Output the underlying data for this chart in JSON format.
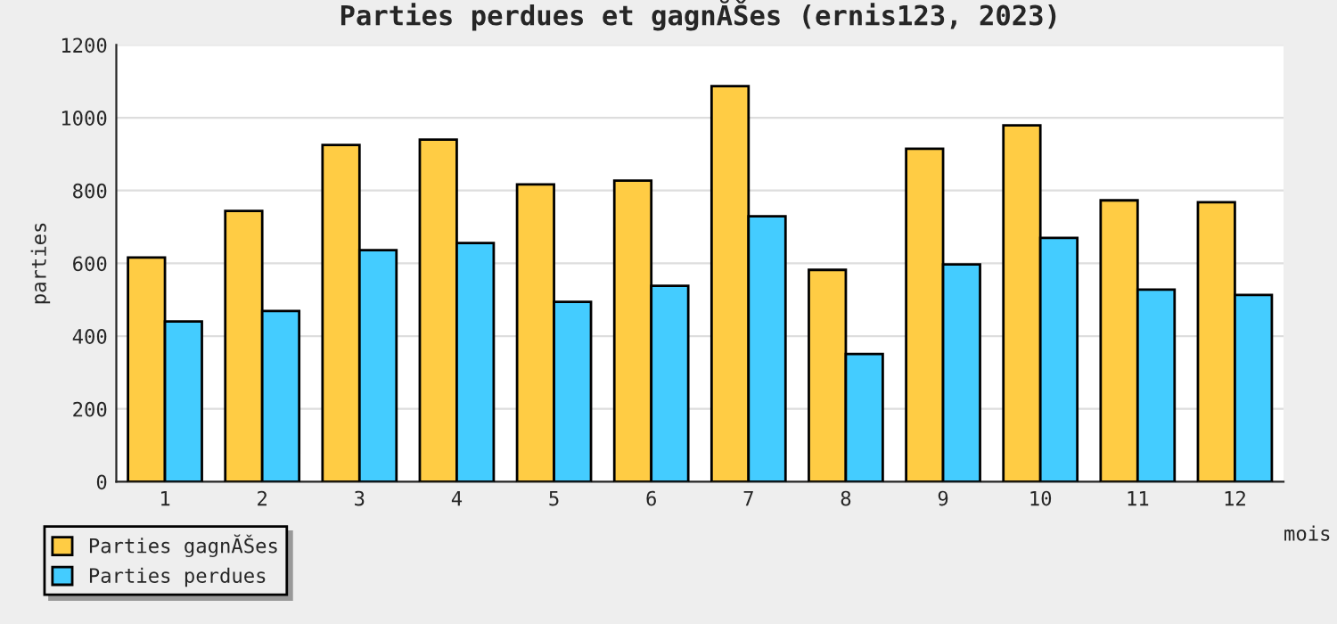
{
  "chart_data": {
    "type": "bar",
    "title": "Parties perdues et gagnĂŠes (ernis123, 2023)",
    "xlabel": "mois",
    "ylabel": "parties",
    "categories": [
      "1",
      "2",
      "3",
      "4",
      "5",
      "6",
      "7",
      "8",
      "9",
      "10",
      "11",
      "12"
    ],
    "series": [
      {
        "name": "Parties gagnĂŠes",
        "color": "#ffcc44",
        "values": [
          616,
          744,
          925,
          940,
          817,
          827,
          1087,
          582,
          915,
          979,
          773,
          768
        ]
      },
      {
        "name": "Parties perdues",
        "color": "#44ccff",
        "values": [
          440,
          469,
          636,
          656,
          494,
          538,
          729,
          351,
          597,
          670,
          528,
          513
        ]
      }
    ],
    "ylim": [
      0,
      1200
    ],
    "yticks": [
      0,
      200,
      400,
      600,
      800,
      1000,
      1200
    ],
    "grid": "y",
    "legend": "bottom left"
  }
}
